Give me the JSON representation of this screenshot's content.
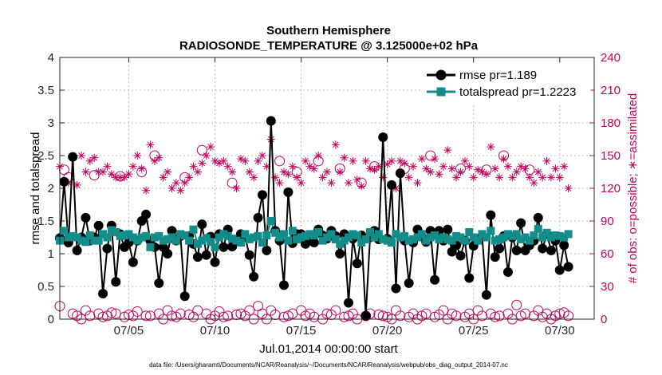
{
  "chart_data": {
    "type": "line",
    "title_line1": "Southern Hemisphere",
    "title_line2": "RADIOSONDE_TEMPERATURE @ 3.125000e+02 hPa",
    "xlabel": "Jul.01,2014 00:00:00 start",
    "ylabel_left": "rmse and totalspread",
    "ylabel_right": "# of obs: o=possible; ∗=assimilated",
    "footnote": "data file: /Users/gharamti/Documents/NCAR/Reanalysis/~/Documents/NCAR/Reanalysis/webpub/obs_diag_output_2014-07.nc",
    "xlim": [
      1,
      32
    ],
    "ylim_left": [
      0,
      4
    ],
    "ylim_right": [
      0,
      240
    ],
    "x_ticks": [
      5,
      10,
      15,
      20,
      25,
      30
    ],
    "x_tick_labels": [
      "07/05",
      "07/10",
      "07/15",
      "07/20",
      "07/25",
      "07/30"
    ],
    "y_left_ticks": [
      0,
      0.5,
      1,
      1.5,
      2,
      2.5,
      3,
      3.5,
      4
    ],
    "y_left_tick_labels": [
      "0",
      "0.5",
      "1",
      "1.5",
      "2",
      "2.5",
      "3",
      "3.5",
      "4"
    ],
    "y_right_ticks": [
      0,
      30,
      60,
      90,
      120,
      150,
      180,
      210,
      240
    ],
    "y_right_tick_labels": [
      "0",
      "30",
      "60",
      "90",
      "120",
      "150",
      "180",
      "210",
      "240"
    ],
    "legend": [
      {
        "name": "rmse pr=1.189",
        "color": "#000000",
        "marker": "circle"
      },
      {
        "name": "totalspread pr=1.2223",
        "color": "#138d89",
        "marker": "square"
      }
    ],
    "x_start": 1.0,
    "x_step": 0.25,
    "series": [
      {
        "name": "rmse",
        "axis": "left",
        "color": "#000000",
        "values": [
          1.24,
          2.1,
          1.17,
          2.48,
          1.05,
          1.25,
          1.55,
          1.2,
          1.25,
          1.43,
          0.39,
          1.08,
          1.43,
          0.57,
          1.3,
          1.1,
          1.17,
          0.87,
          1.2,
          1.5,
          1.6,
          1.2,
          1.1,
          0.55,
          1.1,
          1.0,
          1.35,
          1.2,
          1.27,
          0.35,
          1.27,
          1.15,
          0.95,
          1.45,
          0.98,
          1.26,
          0.87,
          1.3,
          1.1,
          1.37,
          1.11,
          1.2,
          1.3,
          1.25,
          0.98,
          0.65,
          1.55,
          1.9,
          1.05,
          3.03,
          1.35,
          1.2,
          0.52,
          1.94,
          1.16,
          1.3,
          1.3,
          1.15,
          1.25,
          1.17,
          1.37,
          1.28,
          1.23,
          1.35,
          1.27,
          1.0,
          1.3,
          0.25,
          1.23,
          0.85,
          1.28,
          0.05,
          1.25,
          1.35,
          1.22,
          2.78,
          1.23,
          2.05,
          0.47,
          2.23,
          1.2,
          0.55,
          1.17,
          1.37,
          1.26,
          1.18,
          1.35,
          0.6,
          1.35,
          1.2,
          1.37,
          1.03,
          1.13,
          0.97,
          1.2,
          0.63,
          1.12,
          1.22,
          1.27,
          0.37,
          1.59,
          0.95,
          1.08,
          1.27,
          0.72,
          1.25,
          1.05,
          1.47,
          1.05,
          1.13,
          1.2,
          1.55,
          1.08,
          1.3,
          1.05,
          1.2,
          0.75,
          1.13,
          0.8
        ]
      },
      {
        "name": "totalspread",
        "axis": "left",
        "color": "#138d89",
        "values": [
          1.2,
          1.35,
          1.25,
          1.27,
          1.25,
          1.2,
          1.18,
          1.28,
          1.2,
          1.2,
          1.3,
          1.25,
          1.36,
          1.33,
          1.27,
          1.28,
          1.3,
          1.25,
          1.2,
          1.25,
          1.27,
          1.1,
          1.25,
          1.27,
          1.2,
          1.22,
          1.25,
          1.2,
          1.3,
          1.28,
          1.2,
          1.37,
          1.15,
          1.2,
          1.24,
          1.18,
          1.1,
          1.25,
          1.3,
          1.27,
          1.23,
          1.2,
          1.17,
          1.3,
          1.22,
          1.25,
          1.27,
          1.17,
          1.28,
          1.5,
          1.32,
          1.25,
          1.3,
          1.2,
          1.35,
          1.22,
          1.25,
          1.27,
          1.3,
          1.28,
          1.33,
          1.2,
          1.25,
          1.3,
          1.22,
          1.15,
          1.2,
          1.25,
          1.3,
          1.28,
          1.17,
          1.22,
          1.33,
          1.25,
          1.3,
          1.22,
          1.2,
          1.17,
          1.3,
          1.25,
          1.27,
          1.2,
          1.22,
          1.25,
          1.3,
          1.2,
          1.25,
          1.28,
          1.22,
          1.25,
          1.22,
          1.2,
          1.27,
          1.25,
          1.2,
          1.33,
          1.25,
          1.2,
          1.3,
          1.25,
          1.35,
          1.2,
          1.22,
          1.25,
          1.3,
          1.27,
          1.3,
          1.22,
          1.25,
          1.2,
          1.28,
          1.38,
          1.25,
          1.32,
          1.25,
          1.28,
          1.27,
          1.25,
          1.3
        ]
      },
      {
        "name": "obs possible",
        "axis": "right",
        "color": "#c5005c",
        "marker": "circle",
        "values": [
          12,
          137,
          130,
          5,
          3,
          0,
          8,
          3,
          132,
          5,
          2,
          3,
          6,
          5,
          131,
          2,
          4,
          3,
          7,
          135,
          3,
          3,
          150,
          5,
          0,
          8,
          3,
          2,
          5,
          130,
          4,
          2,
          8,
          155,
          5,
          0,
          3,
          7,
          2,
          3,
          125,
          4,
          5,
          3,
          8,
          0,
          12,
          5,
          0,
          8,
          4,
          145,
          2,
          3,
          5,
          135,
          8,
          3,
          5,
          2,
          145,
          0,
          5,
          4,
          8,
          138,
          2,
          3,
          5,
          0,
          125,
          3,
          5,
          140,
          4,
          3,
          2,
          0,
          8,
          3,
          138,
          2,
          5,
          0,
          3,
          5,
          150,
          2,
          4,
          8,
          0,
          5,
          3,
          138,
          2,
          5,
          0,
          8,
          3,
          137,
          5,
          2,
          3,
          150,
          5,
          0,
          13,
          3,
          5,
          137,
          3,
          8,
          2,
          5,
          0,
          3,
          5,
          6,
          3
        ]
      },
      {
        "name": "obs assimilated",
        "axis": "right",
        "color": "#c5005c",
        "marker": "asterisk",
        "values": [
          140,
          125,
          125,
          148,
          123,
          150,
          135,
          145,
          148,
          135,
          135,
          140,
          133,
          130,
          130,
          130,
          133,
          140,
          150,
          138,
          118,
          160,
          145,
          148,
          130,
          135,
          120,
          125,
          118,
          125,
          130,
          140,
          135,
          143,
          150,
          158,
          145,
          143,
          145,
          140,
          135,
          120,
          147,
          145,
          135,
          130,
          145,
          150,
          140,
          165,
          130,
          125,
          135,
          133,
          140,
          130,
          125,
          145,
          140,
          138,
          150,
          130,
          135,
          125,
          160,
          135,
          148,
          125,
          145,
          128,
          122,
          145,
          138,
          137,
          140,
          130,
          142,
          145,
          120,
          145,
          143,
          130,
          140,
          125,
          147,
          138,
          135,
          147,
          133,
          140,
          155,
          138,
          130,
          135,
          145,
          140,
          130,
          137,
          135,
          133,
          158,
          138,
          130,
          147,
          140,
          130,
          135,
          140,
          138,
          130,
          125,
          135,
          130,
          145,
          130,
          138,
          130,
          140,
          120
        ]
      }
    ]
  }
}
